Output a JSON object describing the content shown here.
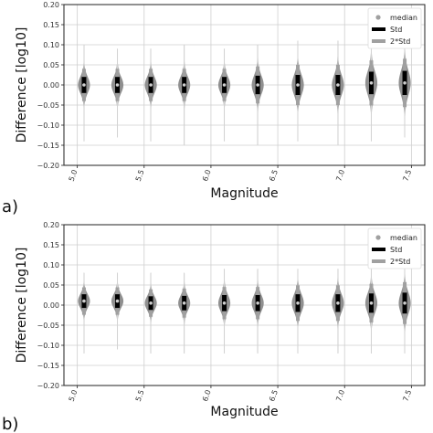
{
  "chart_data": [
    {
      "type": "violin",
      "panel_label": "a)",
      "xlabel": "Magnitude",
      "ylabel": "Difference [log10]",
      "xlim": [
        4.9,
        7.6
      ],
      "ylim": [
        -0.2,
        0.2
      ],
      "x_ticks": [
        5.0,
        5.5,
        6.0,
        6.5,
        7.0,
        7.5
      ],
      "x_tick_labels": [
        "5.0",
        "5.5",
        "6.0",
        "6.5",
        "7.0",
        "7.5"
      ],
      "y_ticks": [
        0.2,
        0.15,
        0.1,
        0.05,
        0.0,
        -0.05,
        -0.1,
        -0.15,
        -0.2
      ],
      "y_tick_labels": [
        "0.20",
        "0.15",
        "0.10",
        "0.05",
        "0.00",
        "−0.05",
        "−0.10",
        "−0.15",
        "−0.20"
      ],
      "grid": true,
      "legend": {
        "placement": "top-right",
        "entries": [
          {
            "label": "median",
            "marker": "dot",
            "color": "#a0a0a0"
          },
          {
            "label": "Std",
            "marker": "bar",
            "color": "#000000"
          },
          {
            "label": "2*Std",
            "marker": "bar",
            "color": "#a0a0a0"
          }
        ]
      },
      "colors": {
        "violin": "#8a8a8a",
        "std": "#000000",
        "two_std": "#a0a0a0",
        "median": "#cfcfcf",
        "tail": "#d4d4d4"
      },
      "violins": [
        {
          "x": 5.05,
          "median": 0.0,
          "std": 0.02,
          "min": -0.14,
          "max": 0.1,
          "width": 0.09
        },
        {
          "x": 5.3,
          "median": 0.0,
          "std": 0.02,
          "min": -0.13,
          "max": 0.09,
          "width": 0.09
        },
        {
          "x": 5.55,
          "median": 0.0,
          "std": 0.02,
          "min": -0.14,
          "max": 0.09,
          "width": 0.09
        },
        {
          "x": 5.8,
          "median": 0.0,
          "std": 0.02,
          "min": -0.15,
          "max": 0.1,
          "width": 0.09
        },
        {
          "x": 6.1,
          "median": 0.0,
          "std": 0.02,
          "min": -0.14,
          "max": 0.09,
          "width": 0.09
        },
        {
          "x": 6.35,
          "median": 0.0,
          "std": 0.023,
          "min": -0.15,
          "max": 0.1,
          "width": 0.09
        },
        {
          "x": 6.65,
          "median": 0.0,
          "std": 0.025,
          "min": -0.14,
          "max": 0.11,
          "width": 0.09
        },
        {
          "x": 6.95,
          "median": 0.0,
          "std": 0.025,
          "min": -0.15,
          "max": 0.11,
          "width": 0.09
        },
        {
          "x": 7.2,
          "median": 0.005,
          "std": 0.028,
          "min": -0.14,
          "max": 0.13,
          "width": 0.09
        },
        {
          "x": 7.45,
          "median": 0.005,
          "std": 0.03,
          "min": -0.13,
          "max": 0.15,
          "width": 0.09
        }
      ]
    },
    {
      "type": "violin",
      "panel_label": "b)",
      "xlabel": "Magnitude",
      "ylabel": "Difference [log10]",
      "xlim": [
        4.9,
        7.6
      ],
      "ylim": [
        -0.2,
        0.2
      ],
      "x_ticks": [
        5.0,
        5.5,
        6.0,
        6.5,
        7.0,
        7.5
      ],
      "x_tick_labels": [
        "5.0",
        "5.5",
        "6.0",
        "6.5",
        "7.0",
        "7.5"
      ],
      "y_ticks": [
        0.2,
        0.15,
        0.1,
        0.05,
        0.0,
        -0.05,
        -0.1,
        -0.15,
        -0.2
      ],
      "y_tick_labels": [
        "0.20",
        "0.15",
        "0.10",
        "0.05",
        "0.00",
        "−0.05",
        "−0.10",
        "−0.15",
        "−0.20"
      ],
      "grid": true,
      "legend": {
        "placement": "top-right",
        "entries": [
          {
            "label": "median",
            "marker": "dot",
            "color": "#a0a0a0"
          },
          {
            "label": "Std",
            "marker": "bar",
            "color": "#000000"
          },
          {
            "label": "2*Std",
            "marker": "bar",
            "color": "#a0a0a0"
          }
        ]
      },
      "colors": {
        "violin": "#8a8a8a",
        "std": "#000000",
        "two_std": "#a0a0a0",
        "median": "#cfcfcf",
        "tail": "#d4d4d4"
      },
      "violins": [
        {
          "x": 5.05,
          "median": 0.01,
          "std": 0.017,
          "min": -0.12,
          "max": 0.08,
          "width": 0.09
        },
        {
          "x": 5.3,
          "median": 0.01,
          "std": 0.017,
          "min": -0.11,
          "max": 0.08,
          "width": 0.09
        },
        {
          "x": 5.55,
          "median": 0.005,
          "std": 0.017,
          "min": -0.12,
          "max": 0.08,
          "width": 0.09
        },
        {
          "x": 5.8,
          "median": 0.005,
          "std": 0.018,
          "min": -0.12,
          "max": 0.08,
          "width": 0.09
        },
        {
          "x": 6.1,
          "median": 0.005,
          "std": 0.02,
          "min": -0.12,
          "max": 0.09,
          "width": 0.09
        },
        {
          "x": 6.35,
          "median": 0.005,
          "std": 0.02,
          "min": -0.12,
          "max": 0.09,
          "width": 0.09
        },
        {
          "x": 6.65,
          "median": 0.005,
          "std": 0.022,
          "min": -0.12,
          "max": 0.09,
          "width": 0.09
        },
        {
          "x": 6.95,
          "median": 0.005,
          "std": 0.022,
          "min": -0.12,
          "max": 0.09,
          "width": 0.09
        },
        {
          "x": 7.2,
          "median": 0.005,
          "std": 0.024,
          "min": -0.12,
          "max": 0.1,
          "width": 0.09
        },
        {
          "x": 7.45,
          "median": 0.005,
          "std": 0.026,
          "min": -0.12,
          "max": 0.1,
          "width": 0.09
        }
      ]
    }
  ]
}
